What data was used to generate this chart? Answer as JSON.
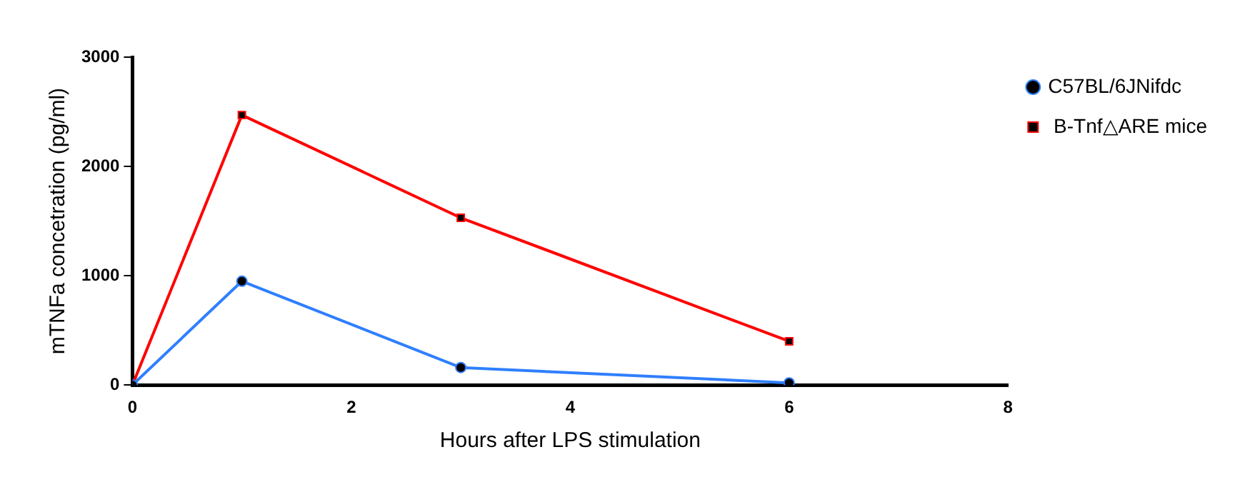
{
  "chart_data": {
    "type": "line",
    "xlabel": "Hours after LPS stimulation",
    "ylabel": "mTNFa concetration (pg/ml)",
    "x": [
      0,
      1,
      3,
      6
    ],
    "series": [
      {
        "name": "C57BL/6JNifdc",
        "color": "#2f7fff",
        "values": [
          0,
          950,
          160,
          20
        ],
        "marker": "circle"
      },
      {
        "name": " B-Tnf△ARE mice",
        "color": "#ff0000",
        "values": [
          0,
          2470,
          1530,
          400
        ],
        "marker": "square"
      }
    ],
    "xlim": [
      0,
      8
    ],
    "xticks": [
      0,
      2,
      4,
      6,
      8
    ],
    "ylim": [
      0,
      3000
    ],
    "yticks": [
      0,
      1000,
      2000,
      3000
    ],
    "grid": false,
    "legend": "top right",
    "line_style": "solid"
  }
}
